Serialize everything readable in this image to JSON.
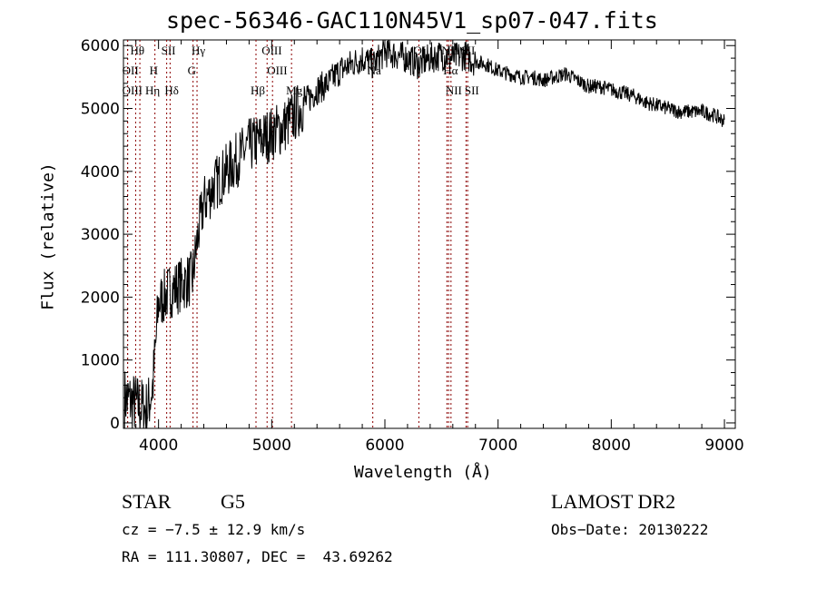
{
  "chart_data": {
    "type": "line",
    "title": "spec-56346-GAC110N45V1_sp07-047.fits",
    "xlabel": "Wavelength (Å)",
    "ylabel": "Flux (relative)",
    "xlim": [
      3690,
      9096
    ],
    "ylim": [
      -87,
      6090
    ],
    "xticks": [
      4000,
      5000,
      6000,
      7000,
      8000,
      9000
    ],
    "yticks": [
      0,
      1000,
      2000,
      3000,
      4000,
      5000,
      6000
    ],
    "series": [
      {
        "name": "spectrum",
        "x": [
          3700,
          3800,
          3900,
          3950,
          4000,
          4100,
          4200,
          4300,
          4350,
          4400,
          4500,
          4600,
          4700,
          4800,
          4900,
          5000,
          5100,
          5200,
          5300,
          5400,
          5500,
          5600,
          5700,
          5800,
          5900,
          6000,
          6100,
          6200,
          6300,
          6400,
          6500,
          6600,
          6700,
          6800,
          6900,
          7000,
          7100,
          7200,
          7300,
          7400,
          7500,
          7600,
          7700,
          7800,
          7900,
          8000,
          8100,
          8200,
          8300,
          8400,
          8500,
          8600,
          8700,
          8800,
          8900,
          9000
        ],
        "y": [
          400,
          300,
          200,
          600,
          1900,
          2100,
          2200,
          2300,
          3000,
          3500,
          3800,
          4000,
          4200,
          4400,
          4500,
          4600,
          4700,
          4900,
          5100,
          5300,
          5400,
          5600,
          5700,
          5800,
          5700,
          5900,
          5850,
          5800,
          5700,
          5800,
          5850,
          5800,
          5850,
          5750,
          5700,
          5600,
          5550,
          5500,
          5500,
          5450,
          5500,
          5550,
          5450,
          5350,
          5350,
          5300,
          5250,
          5200,
          5100,
          5050,
          5000,
          4950,
          4950,
          4950,
          4900,
          4800
        ]
      }
    ],
    "line_color": "#000000",
    "marker_color": "#8b0000",
    "lines": [
      {
        "label": "Hθ",
        "wl": 3798,
        "row": 0
      },
      {
        "label": "OII",
        "wl": 3727,
        "row": 1
      },
      {
        "label": "OIII",
        "wl": 3727,
        "row": 2
      },
      {
        "label": "Hη",
        "wl": 3835,
        "row": 2
      },
      {
        "label": "SII",
        "wl": 4072,
        "row": 0
      },
      {
        "label": "H",
        "wl": 3968,
        "row": 1
      },
      {
        "label": "Hδ",
        "wl": 4102,
        "row": 2
      },
      {
        "label": "Hγ",
        "wl": 4340,
        "row": 0
      },
      {
        "label": "G",
        "wl": 4305,
        "row": 1
      },
      {
        "label": "Hβ",
        "wl": 4861,
        "row": 2
      },
      {
        "label": "OIII",
        "wl": 4959,
        "row": 0
      },
      {
        "label": "OIII",
        "wl": 5007,
        "row": 1
      },
      {
        "label": "Mg",
        "wl": 5175,
        "row": 2
      },
      {
        "label": "Na",
        "wl": 5893,
        "row": 1
      },
      {
        "label": "OI",
        "wl": 6300,
        "row": 0
      },
      {
        "label": "NII",
        "wl": 6548,
        "row": 0
      },
      {
        "label": "Hα",
        "wl": 6563,
        "row": 1
      },
      {
        "label": "SII",
        "wl": 6717,
        "row": 0
      },
      {
        "label": "NII",
        "wl": 6584,
        "row": 2
      },
      {
        "label": "SII",
        "wl": 6731,
        "row": 2
      }
    ]
  },
  "info": {
    "class": "STAR",
    "subclass": "G5",
    "survey": "LAMOST DR2",
    "cz": "cz = −7.5 ± 12.9 km/s",
    "obs_date": "Obs−Date: 20130222",
    "coords": "RA = 111.30807, DEC =  43.69262"
  }
}
